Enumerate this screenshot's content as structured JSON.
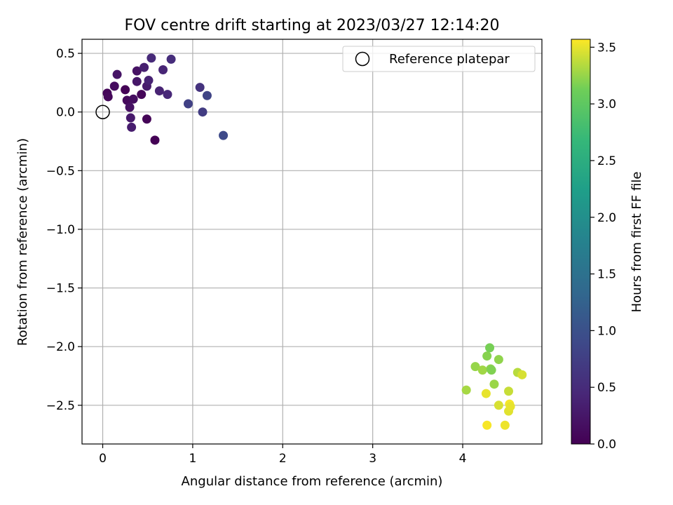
{
  "chart_data": {
    "type": "scatter",
    "title": "FOV centre drift starting at 2023/03/27 12:14:20",
    "xlabel": "Angular distance from reference (arcmin)",
    "ylabel": "Rotation from reference (arcmin)",
    "xlim": [
      -0.23,
      4.88
    ],
    "ylim": [
      -2.83,
      0.62
    ],
    "xticks": [
      0,
      1,
      2,
      3,
      4
    ],
    "yticks": [
      0.5,
      0.0,
      -0.5,
      -1.0,
      -1.5,
      -2.0,
      -2.5
    ],
    "xtick_labels": [
      "0",
      "1",
      "2",
      "3",
      "4"
    ],
    "ytick_labels": [
      "0.5",
      "0.0",
      "−0.5",
      "−1.0",
      "−1.5",
      "−2.0",
      "−2.5"
    ],
    "grid": true,
    "legend": {
      "position": "upper right",
      "label": "Reference platepar",
      "marker": "open circle"
    },
    "reference_point": {
      "x": 0.0,
      "y": 0.0
    },
    "colorbar": {
      "label": "Hours from first FF file",
      "colormap": "viridis",
      "range": [
        0.0,
        3.57
      ],
      "ticks": [
        0.0,
        0.5,
        1.0,
        1.5,
        2.0,
        2.5,
        3.0,
        3.5
      ],
      "tick_labels": [
        "0.0",
        "0.5",
        "1.0",
        "1.5",
        "2.0",
        "2.5",
        "3.0",
        "3.5"
      ]
    },
    "points": [
      {
        "x": 0.05,
        "y": 0.16,
        "hours": 0.05
      },
      {
        "x": 0.06,
        "y": 0.13,
        "hours": 0.08
      },
      {
        "x": 0.13,
        "y": 0.22,
        "hours": 0.12
      },
      {
        "x": 0.16,
        "y": 0.32,
        "hours": 0.22
      },
      {
        "x": 0.25,
        "y": 0.19,
        "hours": 0.02
      },
      {
        "x": 0.27,
        "y": 0.1,
        "hours": 0.1
      },
      {
        "x": 0.3,
        "y": 0.04,
        "hours": 0.18
      },
      {
        "x": 0.31,
        "y": -0.05,
        "hours": 0.28
      },
      {
        "x": 0.32,
        "y": -0.13,
        "hours": 0.32
      },
      {
        "x": 0.34,
        "y": 0.11,
        "hours": 0.15
      },
      {
        "x": 0.38,
        "y": 0.35,
        "hours": 0.2
      },
      {
        "x": 0.38,
        "y": 0.26,
        "hours": 0.25
      },
      {
        "x": 0.43,
        "y": 0.15,
        "hours": 0.06
      },
      {
        "x": 0.46,
        "y": 0.38,
        "hours": 0.35
      },
      {
        "x": 0.49,
        "y": 0.22,
        "hours": 0.3
      },
      {
        "x": 0.49,
        "y": -0.06,
        "hours": 0.04
      },
      {
        "x": 0.51,
        "y": 0.27,
        "hours": 0.38
      },
      {
        "x": 0.54,
        "y": 0.46,
        "hours": 0.48
      },
      {
        "x": 0.58,
        "y": -0.24,
        "hours": 0.01
      },
      {
        "x": 0.63,
        "y": 0.18,
        "hours": 0.4
      },
      {
        "x": 0.67,
        "y": 0.36,
        "hours": 0.42
      },
      {
        "x": 0.72,
        "y": 0.15,
        "hours": 0.45
      },
      {
        "x": 0.76,
        "y": 0.45,
        "hours": 0.52
      },
      {
        "x": 0.95,
        "y": 0.07,
        "hours": 0.78
      },
      {
        "x": 1.08,
        "y": 0.21,
        "hours": 0.6
      },
      {
        "x": 1.11,
        "y": 0.0,
        "hours": 0.72
      },
      {
        "x": 1.16,
        "y": 0.14,
        "hours": 0.82
      },
      {
        "x": 1.34,
        "y": -0.2,
        "hours": 0.9
      },
      {
        "x": 4.04,
        "y": -2.37,
        "hours": 3.3
      },
      {
        "x": 4.14,
        "y": -2.17,
        "hours": 3.25
      },
      {
        "x": 4.22,
        "y": -2.2,
        "hours": 3.28
      },
      {
        "x": 4.26,
        "y": -2.4,
        "hours": 3.5
      },
      {
        "x": 4.27,
        "y": -2.08,
        "hours": 3.2
      },
      {
        "x": 4.27,
        "y": -2.67,
        "hours": 3.55
      },
      {
        "x": 4.3,
        "y": -2.01,
        "hours": 3.15
      },
      {
        "x": 4.31,
        "y": -2.19,
        "hours": 3.22
      },
      {
        "x": 4.32,
        "y": -2.2,
        "hours": 3.18
      },
      {
        "x": 4.35,
        "y": -2.32,
        "hours": 3.26
      },
      {
        "x": 4.4,
        "y": -2.11,
        "hours": 3.23
      },
      {
        "x": 4.4,
        "y": -2.5,
        "hours": 3.45
      },
      {
        "x": 4.47,
        "y": -2.67,
        "hours": 3.52
      },
      {
        "x": 4.51,
        "y": -2.38,
        "hours": 3.4
      },
      {
        "x": 4.51,
        "y": -2.55,
        "hours": 3.48
      },
      {
        "x": 4.52,
        "y": -2.49,
        "hours": 3.55
      },
      {
        "x": 4.53,
        "y": -2.51,
        "hours": 3.5
      },
      {
        "x": 4.61,
        "y": -2.22,
        "hours": 3.35
      },
      {
        "x": 4.66,
        "y": -2.24,
        "hours": 3.45
      }
    ]
  },
  "colors": {
    "grid": "#b0b0b0",
    "axes": "#000000",
    "background": "#ffffff"
  }
}
